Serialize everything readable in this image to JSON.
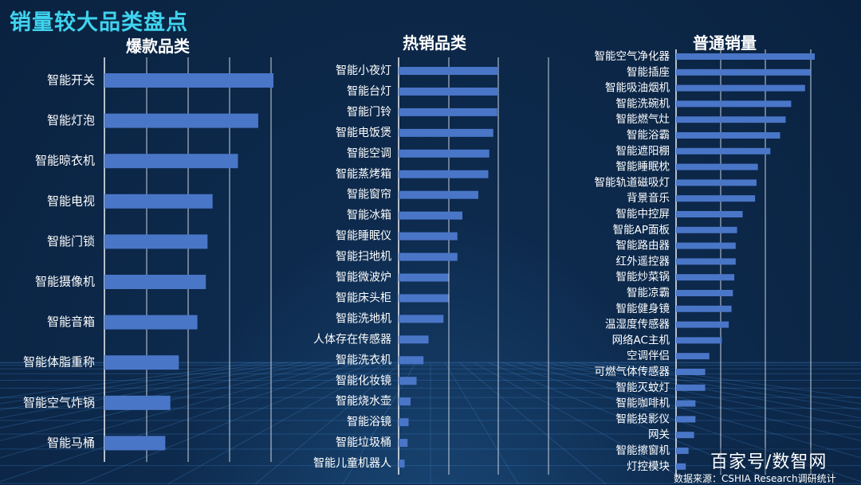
{
  "title": "销量较大品类盘点",
  "brand": "百家号/数智网",
  "source": "数据来源：CSHIA Research调研统计",
  "colors": {
    "bar": "#4a76c8",
    "title": "#3fd3ee"
  },
  "chart_data": [
    {
      "type": "bar",
      "orientation": "horizontal",
      "title": "爆款品类",
      "xlim": [
        0,
        100
      ],
      "categories": [
        "智能开关",
        "智能灯泡",
        "智能晾衣机",
        "智能电视",
        "智能门锁",
        "智能摄像机",
        "智能音箱",
        "智能体脂重称",
        "智能空气炸锅",
        "智能马桶"
      ],
      "values": [
        100,
        91,
        79,
        64,
        61,
        60,
        55,
        44,
        39,
        36
      ]
    },
    {
      "type": "bar",
      "orientation": "horizontal",
      "title": "热销品类",
      "xlim": [
        0,
        100
      ],
      "categories": [
        "智能小夜灯",
        "智能台灯",
        "智能门铃",
        "智能电饭煲",
        "智能空调",
        "智能蒸烤箱",
        "智能窗帘",
        "智能冰箱",
        "智能睡眠仪",
        "智能扫地机",
        "智能微波炉",
        "智能床头柜",
        "智能洗地机",
        "人体存在传感器",
        "智能洗衣机",
        "智能化妆镜",
        "智能烧水壶",
        "智能浴镜",
        "智能垃圾桶",
        "智能儿童机器人"
      ],
      "values": [
        100,
        100,
        99,
        95,
        91,
        90,
        80,
        64,
        59,
        59,
        50,
        50,
        45,
        30,
        25,
        18,
        12,
        10,
        9,
        6
      ]
    },
    {
      "type": "bar",
      "orientation": "horizontal",
      "title": "普通销量",
      "xlim": [
        0,
        100
      ],
      "categories": [
        "智能空气净化器",
        "智能插座",
        "智能吸油烟机",
        "智能洗碗机",
        "智能燃气灶",
        "智能浴霸",
        "智能遮阳棚",
        "智能睡眠枕",
        "智能轨道磁吸灯",
        "背景音乐",
        "智能中控屏",
        "智能AP面板",
        "智能路由器",
        "红外遥控器",
        "智能炒菜锅",
        "智能凉霸",
        "智能健身镜",
        "温湿度传感器",
        "网络AC主机",
        "空调伴侣",
        "可燃气体传感器",
        "智能灭蚊灯",
        "智能咖啡机",
        "智能投影仪",
        "网关",
        "智能擦窗机",
        "灯控模块"
      ],
      "values": [
        100,
        97,
        93,
        83,
        79,
        75,
        68,
        59,
        58,
        57,
        48,
        44,
        43,
        43,
        42,
        41,
        40,
        38,
        33,
        24,
        21,
        21,
        14,
        14,
        13,
        9,
        7
      ]
    }
  ]
}
